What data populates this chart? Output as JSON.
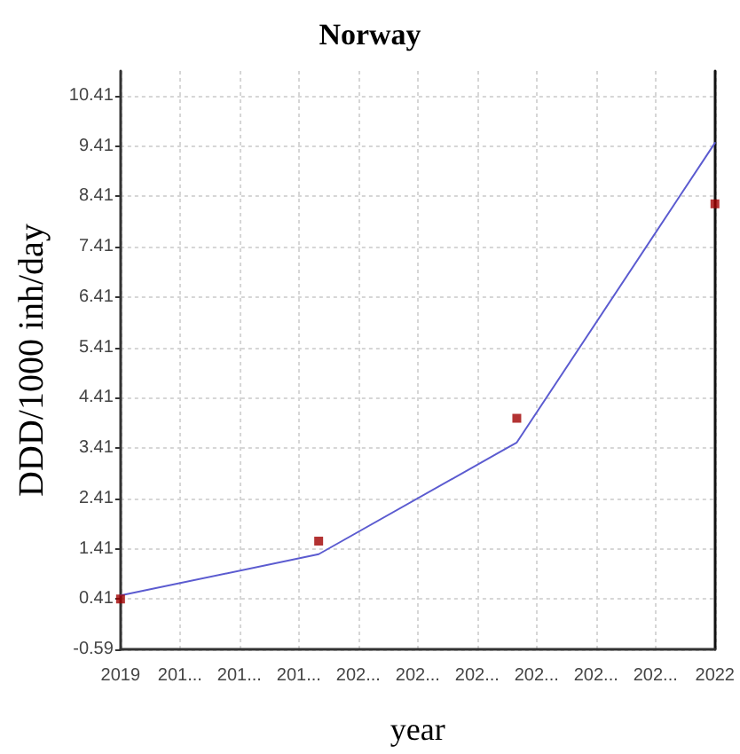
{
  "chart_data": {
    "type": "line",
    "title": "Norway",
    "xlabel": "year",
    "ylabel": "DDD/1000 inh/day",
    "x": [
      2019,
      2020,
      2021,
      2022
    ],
    "series": [
      {
        "color": "#5b5bd0",
        "values": [
          0.48,
          1.3,
          3.52,
          9.47
        ]
      },
      {
        "type": "scatter",
        "marker": "square",
        "color": "#a00000",
        "values": [
          0.41,
          1.56,
          4.0,
          8.26
        ]
      }
    ],
    "xlim": [
      2019,
      2022
    ],
    "xticks": [
      2019,
      {
        "value": 2019.3,
        "label": "201..."
      },
      {
        "value": 2019.6,
        "label": "201..."
      },
      {
        "value": 2019.9,
        "label": "201..."
      },
      {
        "value": 2020.2,
        "label": "202..."
      },
      {
        "value": 2020.5,
        "label": "202..."
      },
      {
        "value": 2020.8,
        "label": "202..."
      },
      {
        "value": 2021.1,
        "label": "202..."
      },
      {
        "value": 2021.4,
        "label": "202..."
      },
      {
        "value": 2021.7,
        "label": "202..."
      },
      2022
    ],
    "ylim": [
      -0.59,
      10.9
    ],
    "yticks": [
      -0.59,
      0.41,
      1.41,
      2.41,
      3.41,
      4.41,
      5.41,
      6.41,
      7.41,
      8.41,
      9.41,
      10.41
    ],
    "grid": true
  }
}
